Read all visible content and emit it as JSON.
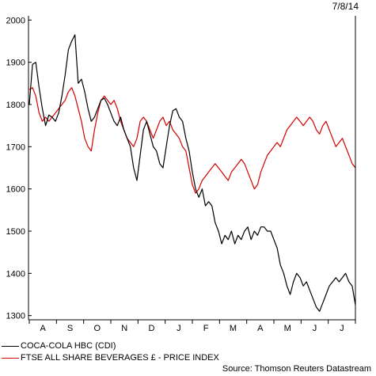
{
  "chart_data": {
    "type": "line",
    "date_label": "7/8/14",
    "source": "Source: Thomson Reuters Datastream",
    "yticks": [
      1300,
      1400,
      1500,
      1600,
      1700,
      1800,
      1900,
      2000
    ],
    "ylim": [
      1290,
      2010
    ],
    "months": [
      "A",
      "S",
      "O",
      "N",
      "D",
      "J",
      "F",
      "M",
      "A",
      "M",
      "J",
      "J"
    ],
    "grid": false,
    "legend_position": "bottom-left",
    "series": [
      {
        "name": "COCA-COLA HBC (CDI)",
        "color": "#000000",
        "values": [
          1800,
          1895,
          1900,
          1840,
          1790,
          1750,
          1775,
          1770,
          1760,
          1780,
          1820,
          1870,
          1930,
          1950,
          1965,
          1850,
          1860,
          1830,
          1790,
          1760,
          1770,
          1790,
          1810,
          1815,
          1800,
          1780,
          1760,
          1750,
          1770,
          1740,
          1720,
          1700,
          1650,
          1620,
          1680,
          1740,
          1760,
          1730,
          1700,
          1690,
          1660,
          1650,
          1700,
          1750,
          1785,
          1790,
          1770,
          1760,
          1720,
          1690,
          1640,
          1600,
          1580,
          1600,
          1560,
          1570,
          1560,
          1520,
          1500,
          1470,
          1490,
          1480,
          1500,
          1470,
          1490,
          1480,
          1500,
          1510,
          1480,
          1500,
          1490,
          1510,
          1510,
          1500,
          1500,
          1480,
          1460,
          1420,
          1400,
          1370,
          1350,
          1380,
          1400,
          1390,
          1370,
          1380,
          1360,
          1340,
          1320,
          1310,
          1330,
          1350,
          1370,
          1380,
          1390,
          1380,
          1390,
          1400,
          1380,
          1370,
          1325
        ]
      },
      {
        "name": "FTSE ALL SHARE BEVERAGES £ - PRICE INDEX",
        "color": "#d40000",
        "values": [
          1835,
          1840,
          1820,
          1780,
          1760,
          1770,
          1760,
          1770,
          1780,
          1790,
          1800,
          1810,
          1830,
          1840,
          1820,
          1790,
          1760,
          1720,
          1700,
          1690,
          1740,
          1780,
          1810,
          1820,
          1810,
          1800,
          1810,
          1790,
          1760,
          1740,
          1720,
          1710,
          1700,
          1720,
          1760,
          1770,
          1760,
          1740,
          1720,
          1740,
          1760,
          1770,
          1750,
          1760,
          1740,
          1730,
          1720,
          1700,
          1690,
          1650,
          1610,
          1590,
          1600,
          1620,
          1630,
          1640,
          1650,
          1660,
          1650,
          1640,
          1630,
          1620,
          1640,
          1650,
          1660,
          1670,
          1660,
          1640,
          1620,
          1600,
          1610,
          1640,
          1660,
          1680,
          1690,
          1700,
          1710,
          1700,
          1720,
          1740,
          1750,
          1760,
          1770,
          1760,
          1750,
          1760,
          1770,
          1760,
          1740,
          1730,
          1750,
          1760,
          1740,
          1720,
          1700,
          1710,
          1720,
          1700,
          1680,
          1660,
          1650
        ]
      }
    ]
  }
}
